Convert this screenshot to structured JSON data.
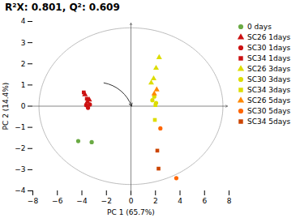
{
  "chart_data": {
    "type": "scatter",
    "title": "R²X: 0.801, Q²: 0.609",
    "xlabel": "PC 1 (65.7%)",
    "ylabel": "PC 2 (14.4%)",
    "xlim": [
      -8,
      8
    ],
    "ylim": [
      -4,
      4
    ],
    "xticks": [
      -8,
      -6,
      -4,
      -2,
      0,
      2,
      4,
      6,
      8
    ],
    "yticks": [
      -4,
      -3,
      -2,
      -1,
      0,
      1,
      2,
      3,
      4
    ],
    "grid": false,
    "legend": "right",
    "series": [
      {
        "name": "0 days",
        "color": "#6aaa44",
        "marker": "circle",
        "x": [
          -4.3,
          -3.2
        ],
        "y": [
          -1.65,
          -1.7
        ]
      },
      {
        "name": "SC26 1days",
        "color": "#cc1111",
        "marker": "triangle",
        "x": [
          -3.75,
          -3.55,
          -3.4
        ],
        "y": [
          0.55,
          0.2,
          0.3
        ]
      },
      {
        "name": "SC30 1days",
        "color": "#cc1111",
        "marker": "circle",
        "x": [
          -3.65,
          -3.35,
          -3.5
        ],
        "y": [
          0.05,
          0.08,
          -0.08
        ]
      },
      {
        "name": "SC34 1days",
        "color": "#cc1111",
        "marker": "square",
        "x": [
          -3.85,
          -3.6
        ],
        "y": [
          0.65,
          0.35
        ]
      },
      {
        "name": "SC26 3days",
        "color": "#dddd00",
        "marker": "triangle",
        "x": [
          2.05,
          1.85,
          1.65,
          2.3
        ],
        "y": [
          1.8,
          1.3,
          1.1,
          2.3
        ]
      },
      {
        "name": "SC30 3days",
        "color": "#dddd00",
        "marker": "circle",
        "x": [
          1.9,
          1.75,
          2.05
        ],
        "y": [
          0.45,
          0.28,
          0.15
        ]
      },
      {
        "name": "SC34 3days",
        "color": "#dddd00",
        "marker": "square",
        "x": [
          1.95,
          2.0
        ],
        "y": [
          -0.65,
          0.05
        ]
      },
      {
        "name": "SC26 5days",
        "color": "#ff8800",
        "marker": "triangle",
        "x": [
          2.1,
          1.9
        ],
        "y": [
          0.78,
          0.58
        ]
      },
      {
        "name": "SC30 5days",
        "color": "#ff6600",
        "marker": "circle",
        "x": [
          2.4,
          3.7
        ],
        "y": [
          -1.05,
          -3.4
        ]
      },
      {
        "name": "SC34 5days",
        "color": "#cc4400",
        "marker": "square",
        "x": [
          2.15,
          2.25
        ],
        "y": [
          -2.1,
          -2.95
        ]
      }
    ],
    "ellipse": {
      "cx": 0,
      "cy": 0,
      "rx": 7.5,
      "ry": 3.7
    },
    "arrow": {
      "x1": -2.2,
      "y1": 1.1,
      "x2": 0.05,
      "y2": 0.0
    }
  }
}
